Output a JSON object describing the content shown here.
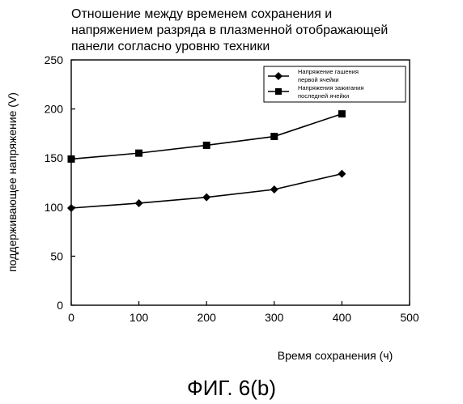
{
  "chart_data": {
    "type": "line",
    "title_lines": [
      "Отношение между временем сохранения и",
      "напряжением разряда в плазменной отображающей",
      "панели согласно уровню техники"
    ],
    "xlabel": "Время сохранения (ч)",
    "ylabel": "поддерживающее напряжение (V)",
    "xlim": [
      0,
      500
    ],
    "ylim": [
      0,
      250
    ],
    "x_ticks": [
      0,
      100,
      200,
      300,
      400,
      500
    ],
    "y_ticks": [
      0,
      50,
      100,
      150,
      200,
      250
    ],
    "grid": false,
    "legend_position": "top-right",
    "series": [
      {
        "name_lines": [
          "Напряжение гашения",
          "первой ячейки"
        ],
        "marker": "diamond",
        "color": "#000000",
        "x": [
          0,
          100,
          200,
          300,
          400
        ],
        "y": [
          99,
          104,
          110,
          118,
          134
        ]
      },
      {
        "name_lines": [
          "Напряжения зажигания",
          "последней ячейки"
        ],
        "marker": "square",
        "color": "#000000",
        "x": [
          0,
          100,
          200,
          300,
          400
        ],
        "y": [
          149,
          155,
          163,
          172,
          195
        ]
      }
    ]
  },
  "figure_caption": "ФИГ. 6(b)"
}
